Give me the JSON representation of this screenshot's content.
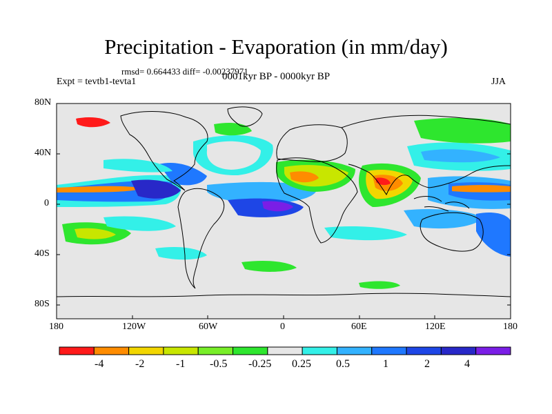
{
  "title": "Precipitation - Evaporation (in mm/day)",
  "stats": "rmsd= 0.664433 diff= -0.00237971",
  "experiment": "Expt = tevtb1-tevta1",
  "period": "0001kyr BP - 0000kyr BP",
  "season": "JJA",
  "latitude_labels": [
    "80N",
    "40N",
    "0",
    "40S",
    "80S"
  ],
  "longitude_labels": [
    "180",
    "120W",
    "60W",
    "0",
    "60E",
    "120E",
    "180"
  ],
  "colorbar": {
    "colors": [
      "#ff1a1a",
      "#ff8c00",
      "#f2d600",
      "#c8e600",
      "#78ee28",
      "#2ee62e",
      "#e6e6e6",
      "#33f0e8",
      "#33b2ff",
      "#1f78ff",
      "#1e46e6",
      "#2828c8",
      "#7a1ee6"
    ],
    "labels": [
      "-4",
      "-2",
      "-1",
      "-0.5",
      "-0.25",
      "0.25",
      "0.5",
      "1",
      "2",
      "4"
    ]
  },
  "map_background": "#e6e6e6"
}
